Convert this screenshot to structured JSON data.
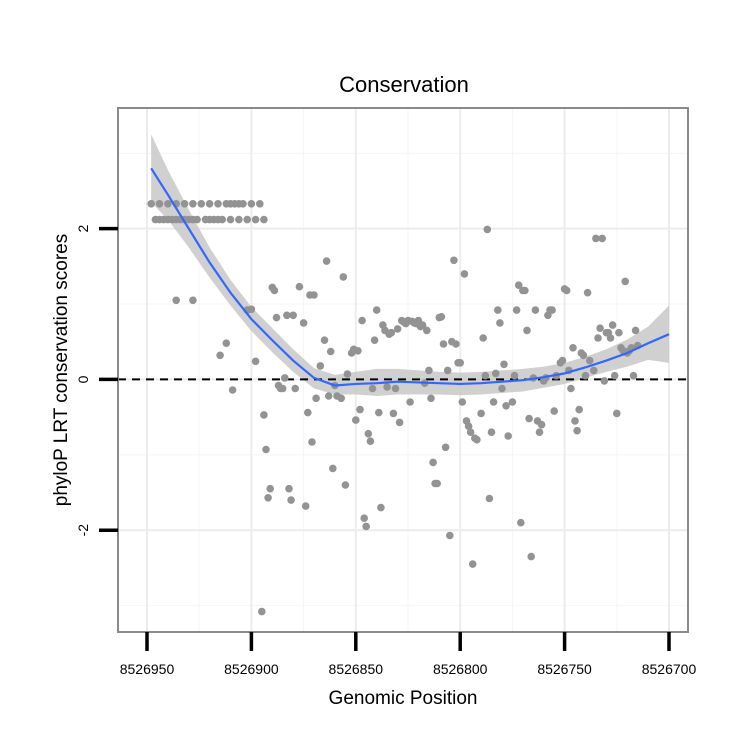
{
  "chart_data": {
    "type": "scatter",
    "title": "Conservation",
    "xlabel": "Genomic Position",
    "ylabel": "phyloP LRT conservation scores",
    "xlim": [
      8526700,
      8526950
    ],
    "x_reversed": true,
    "ylim": [
      -3.35,
      3.6
    ],
    "x_ticks": [
      8526950,
      8526900,
      8526850,
      8526800,
      8526750,
      8526700
    ],
    "x_tick_labels": [
      "8526950",
      "8526900",
      "8526850",
      "8526800",
      "8526750",
      "8526700"
    ],
    "y_ticks": [
      -2,
      0,
      2
    ],
    "y_tick_labels": [
      "-2",
      "0",
      "2"
    ],
    "reference_line": {
      "y": 0,
      "style": "dashed"
    },
    "grid": true,
    "colors": {
      "points": "#939393",
      "smooth": "#3366FF",
      "ribbon": "#C8C8C8",
      "panel_border": "#8a8a8a",
      "grid": "#ececec"
    },
    "series": [
      {
        "name": "phyloP",
        "points": [
          [
            8526948,
            2.33
          ],
          [
            8526946,
            2.12
          ],
          [
            8526944,
            2.33
          ],
          [
            8526942,
            2.12
          ],
          [
            8526940,
            2.33
          ],
          [
            8526938,
            2.12
          ],
          [
            8526936,
            2.33
          ],
          [
            8526934,
            2.12
          ],
          [
            8526932,
            2.33
          ],
          [
            8526930,
            2.12
          ],
          [
            8526928,
            2.33
          ],
          [
            8526926,
            2.12
          ],
          [
            8526924,
            2.33
          ],
          [
            8526922,
            2.12
          ],
          [
            8526920,
            2.33
          ],
          [
            8526918,
            2.12
          ],
          [
            8526916,
            2.33
          ],
          [
            8526914,
            2.12
          ],
          [
            8526912,
            2.33
          ],
          [
            8526910,
            2.12
          ],
          [
            8526908,
            2.33
          ],
          [
            8526906,
            2.12
          ],
          [
            8526904,
            2.33
          ],
          [
            8526902,
            2.12
          ],
          [
            8526900,
            2.33
          ],
          [
            8526898,
            2.12
          ],
          [
            8526896,
            2.33
          ],
          [
            8526894,
            2.12
          ],
          [
            8526944,
            2.12
          ],
          [
            8526940,
            2.12
          ],
          [
            8526936,
            2.12
          ],
          [
            8526932,
            2.12
          ],
          [
            8526928,
            2.12
          ],
          [
            8526920,
            2.12
          ],
          [
            8526916,
            2.12
          ],
          [
            8526910,
            2.33
          ],
          [
            8526906,
            2.33
          ],
          [
            8526936,
            1.05
          ],
          [
            8526928,
            1.05
          ],
          [
            8526915,
            0.32
          ],
          [
            8526912,
            0.48
          ],
          [
            8526909,
            -0.14
          ],
          [
            8526902,
            0.92
          ],
          [
            8526900,
            0.93
          ],
          [
            8526898,
            0.24
          ],
          [
            8526895,
            -3.08
          ],
          [
            8526894,
            -0.47
          ],
          [
            8526893,
            -0.93
          ],
          [
            8526892,
            -1.57
          ],
          [
            8526891,
            -1.45
          ],
          [
            8526890,
            1.22
          ],
          [
            8526889,
            1.18
          ],
          [
            8526888,
            0.82
          ],
          [
            8526887,
            -0.08
          ],
          [
            8526886,
            -0.12
          ],
          [
            8526885,
            -0.12
          ],
          [
            8526884,
            0.02
          ],
          [
            8526883,
            0.85
          ],
          [
            8526882,
            -1.45
          ],
          [
            8526881,
            -1.6
          ],
          [
            8526880,
            0.85
          ],
          [
            8526879,
            -0.12
          ],
          [
            8526877,
            1.23
          ],
          [
            8526875,
            0.75
          ],
          [
            8526874,
            -1.68
          ],
          [
            8526873,
            -0.44
          ],
          [
            8526872,
            1.12
          ],
          [
            8526871,
            -0.83
          ],
          [
            8526870,
            1.12
          ],
          [
            8526869,
            -0.25
          ],
          [
            8526867,
            0.18
          ],
          [
            8526865,
            0.52
          ],
          [
            8526864,
            1.57
          ],
          [
            8526863,
            -0.22
          ],
          [
            8526862,
            0.37
          ],
          [
            8526861,
            -1.18
          ],
          [
            8526860,
            -0.08
          ],
          [
            8526859,
            -0.22
          ],
          [
            8526857,
            -0.25
          ],
          [
            8526856,
            1.36
          ],
          [
            8526855,
            -1.4
          ],
          [
            8526854,
            0.07
          ],
          [
            8526852,
            0.35
          ],
          [
            8526851,
            0.4
          ],
          [
            8526850,
            -0.54
          ],
          [
            8526849,
            0.38
          ],
          [
            8526848,
            -0.4
          ],
          [
            8526847,
            0.78
          ],
          [
            8526846,
            -1.84
          ],
          [
            8526845,
            -1.95
          ],
          [
            8526844,
            -0.72
          ],
          [
            8526843,
            -0.82
          ],
          [
            8526842,
            -0.12
          ],
          [
            8526841,
            0.52
          ],
          [
            8526840,
            0.92
          ],
          [
            8526839,
            -0.44
          ],
          [
            8526838,
            -1.7
          ],
          [
            8526837,
            0.72
          ],
          [
            8526836,
            0.65
          ],
          [
            8526835,
            -0.1
          ],
          [
            8526834,
            0.6
          ],
          [
            8526833,
            0.62
          ],
          [
            8526832,
            -0.45
          ],
          [
            8526831,
            -0.12
          ],
          [
            8526830,
            0.67
          ],
          [
            8526829,
            -0.57
          ],
          [
            8526828,
            0.78
          ],
          [
            8526827,
            0.76
          ],
          [
            8526826,
            0.74
          ],
          [
            8526825,
            0.78
          ],
          [
            8526824,
            -0.3
          ],
          [
            8526823,
            0.77
          ],
          [
            8526822,
            0.75
          ],
          [
            8526821,
            0.74
          ],
          [
            8526820,
            0.78
          ],
          [
            8526819,
            0.7
          ],
          [
            8526818,
            0.72
          ],
          [
            8526817,
            -0.05
          ],
          [
            8526816,
            0.65
          ],
          [
            8526815,
            0.12
          ],
          [
            8526814,
            -0.25
          ],
          [
            8526813,
            -1.1
          ],
          [
            8526812,
            -1.38
          ],
          [
            8526811,
            -1.38
          ],
          [
            8526810,
            0.82
          ],
          [
            8526809,
            0.83
          ],
          [
            8526808,
            0.47
          ],
          [
            8526807,
            -0.9
          ],
          [
            8526806,
            0.12
          ],
          [
            8526805,
            -2.07
          ],
          [
            8526804,
            0.5
          ],
          [
            8526803,
            1.58
          ],
          [
            8526802,
            0.47
          ],
          [
            8526801,
            0.22
          ],
          [
            8526800,
            0.22
          ],
          [
            8526799,
            -0.3
          ],
          [
            8526798,
            1.4
          ],
          [
            8526797,
            -0.55
          ],
          [
            8526796,
            -0.62
          ],
          [
            8526795,
            -0.7
          ],
          [
            8526794,
            -2.45
          ],
          [
            8526793,
            -0.78
          ],
          [
            8526792,
            -0.8
          ],
          [
            8526790,
            -0.45
          ],
          [
            8526789,
            0.55
          ],
          [
            8526788,
            0.05
          ],
          [
            8526787,
            1.99
          ],
          [
            8526786,
            -1.58
          ],
          [
            8526785,
            -0.7
          ],
          [
            8526784,
            -0.3
          ],
          [
            8526783,
            0.08
          ],
          [
            8526782,
            0.92
          ],
          [
            8526781,
            0.75
          ],
          [
            8526780,
            -0.12
          ],
          [
            8526779,
            0.2
          ],
          [
            8526778,
            -0.35
          ],
          [
            8526777,
            -0.75
          ],
          [
            8526775,
            -0.3
          ],
          [
            8526774,
            0.05
          ],
          [
            8526773,
            0.92
          ],
          [
            8526772,
            1.25
          ],
          [
            8526771,
            -1.9
          ],
          [
            8526770,
            1.18
          ],
          [
            8526769,
            1.18
          ],
          [
            8526768,
            0.65
          ],
          [
            8526767,
            -0.52
          ],
          [
            8526766,
            -2.35
          ],
          [
            8526765,
            0.02
          ],
          [
            8526764,
            0.92
          ],
          [
            8526763,
            -0.55
          ],
          [
            8526762,
            -0.7
          ],
          [
            8526761,
            -0.6
          ],
          [
            8526760,
            -0.02
          ],
          [
            8526759,
            0.02
          ],
          [
            8526758,
            0.85
          ],
          [
            8526757,
            0.92
          ],
          [
            8526756,
            0.92
          ],
          [
            8526755,
            -0.42
          ],
          [
            8526754,
            0.05
          ],
          [
            8526752,
            0.22
          ],
          [
            8526751,
            0.25
          ],
          [
            8526750,
            1.2
          ],
          [
            8526749,
            1.18
          ],
          [
            8526748,
            0.12
          ],
          [
            8526747,
            -0.12
          ],
          [
            8526746,
            0.42
          ],
          [
            8526745,
            -0.55
          ],
          [
            8526744,
            -0.68
          ],
          [
            8526743,
            -0.4
          ],
          [
            8526742,
            0.35
          ],
          [
            8526741,
            0.32
          ],
          [
            8526740,
            0.05
          ],
          [
            8526739,
            1.15
          ],
          [
            8526738,
            0.25
          ],
          [
            8526736,
            0.12
          ],
          [
            8526735,
            1.87
          ],
          [
            8526734,
            0.55
          ],
          [
            8526733,
            0.68
          ],
          [
            8526732,
            1.87
          ],
          [
            8526731,
            -0.02
          ],
          [
            8526730,
            0.62
          ],
          [
            8526729,
            0.62
          ],
          [
            8526728,
            0.55
          ],
          [
            8526727,
            0.72
          ],
          [
            8526726,
            0.05
          ],
          [
            8526725,
            -0.45
          ],
          [
            8526724,
            0.62
          ],
          [
            8526723,
            0.42
          ],
          [
            8526722,
            0.38
          ],
          [
            8526721,
            1.3
          ],
          [
            8526720,
            0.35
          ],
          [
            8526719,
            0.38
          ],
          [
            8526718,
            0.42
          ],
          [
            8526717,
            0.05
          ],
          [
            8526716,
            0.65
          ],
          [
            8526715,
            0.45
          ]
        ]
      },
      {
        "name": "loess fit",
        "type": "line",
        "x": [
          8526948,
          8526940,
          8526930,
          8526920,
          8526910,
          8526900,
          8526890,
          8526880,
          8526870,
          8526860,
          8526850,
          8526840,
          8526830,
          8526820,
          8526810,
          8526800,
          8526790,
          8526780,
          8526770,
          8526760,
          8526750,
          8526740,
          8526730,
          8526720,
          8526710,
          8526700
        ],
        "y": [
          2.8,
          2.45,
          2.0,
          1.55,
          1.15,
          0.8,
          0.52,
          0.25,
          0.02,
          -0.08,
          -0.06,
          -0.05,
          -0.03,
          -0.04,
          -0.05,
          -0.06,
          -0.05,
          -0.03,
          -0.01,
          0.03,
          0.08,
          0.16,
          0.25,
          0.35,
          0.48,
          0.6
        ],
        "ci_upper": [
          3.25,
          2.78,
          2.25,
          1.75,
          1.32,
          0.96,
          0.68,
          0.4,
          0.15,
          0.06,
          0.1,
          0.14,
          0.14,
          0.12,
          0.1,
          0.09,
          0.1,
          0.12,
          0.14,
          0.17,
          0.22,
          0.3,
          0.4,
          0.53,
          0.7,
          0.98
        ],
        "ci_lower": [
          2.35,
          2.12,
          1.75,
          1.35,
          0.98,
          0.64,
          0.36,
          0.1,
          -0.12,
          -0.2,
          -0.2,
          -0.22,
          -0.2,
          -0.2,
          -0.2,
          -0.21,
          -0.2,
          -0.18,
          -0.16,
          -0.11,
          -0.06,
          0.02,
          0.1,
          0.17,
          0.26,
          0.22
        ]
      }
    ]
  }
}
